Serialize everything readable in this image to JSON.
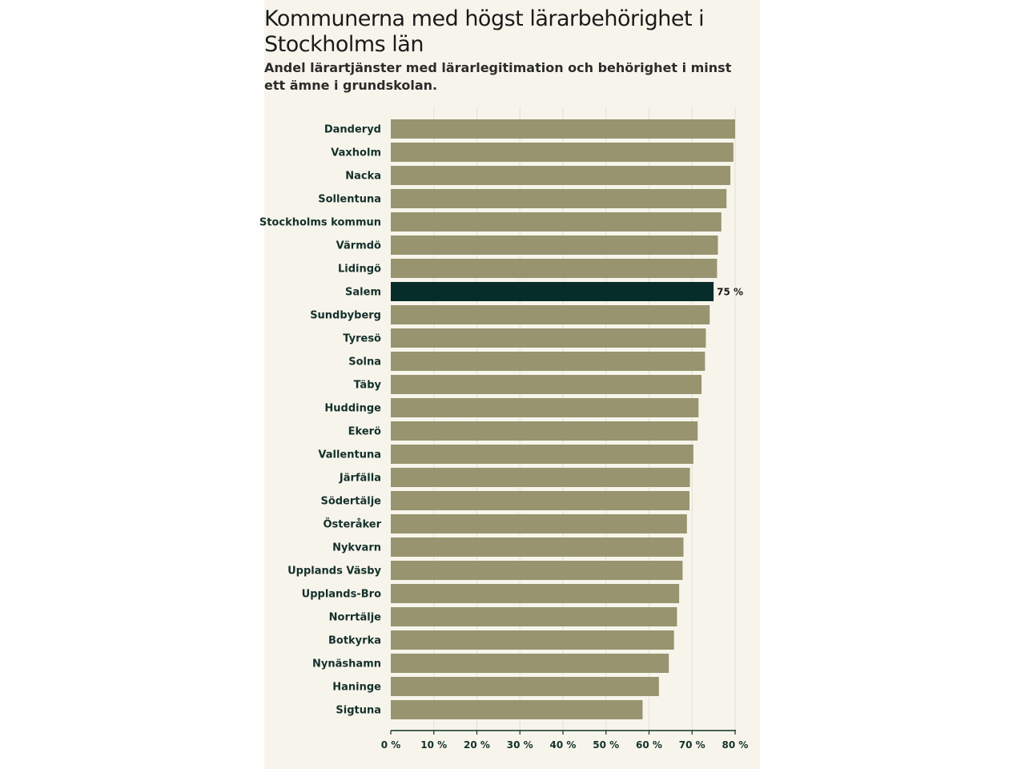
{
  "chart_data": {
    "type": "bar",
    "orientation": "horizontal",
    "title": "Kommunerna med högst lärarbehörighet i Stockholms län",
    "subtitle": "Andel lärartjänster med lärarlegitimation och behörighet i minst ett ämne i grundskolan.",
    "xlabel": "",
    "ylabel": "",
    "xlim": [
      0,
      80
    ],
    "grid": true,
    "categories": [
      "Danderyd",
      "Vaxholm",
      "Nacka",
      "Sollentuna",
      "Stockholms kommun",
      "Värmdö",
      "Lidingö",
      "Salem",
      "Sundbyberg",
      "Tyresö",
      "Solna",
      "Täby",
      "Huddinge",
      "Ekerö",
      "Vallentuna",
      "Järfälla",
      "Södertälje",
      "Österåker",
      "Nykvarn",
      "Upplands Väsby",
      "Upplands-Bro",
      "Norrtälje",
      "Botkyrka",
      "Nynäshamn",
      "Haninge",
      "Sigtuna"
    ],
    "values": [
      80,
      79.6,
      78.9,
      78,
      76.8,
      76,
      75.8,
      75,
      74.1,
      73.2,
      73,
      72.2,
      71.5,
      71.3,
      70.3,
      69.5,
      69.4,
      68.8,
      68,
      67.8,
      67,
      66.5,
      65.8,
      64.6,
      62.3,
      58.5
    ],
    "highlight": {
      "category": "Salem",
      "label": "75 %"
    },
    "ticks": [
      0,
      10,
      20,
      30,
      40,
      50,
      60,
      70,
      80
    ],
    "tick_labels": [
      "0 %",
      "10 %",
      "20 %",
      "30 %",
      "40 %",
      "50 %",
      "60 %",
      "70 %",
      "80 %"
    ],
    "colors": {
      "bar": "#97946f",
      "highlight": "#072d2b",
      "grid": "#e3e0d2",
      "axis": "#14302b",
      "background": "#f7f5eb"
    }
  }
}
